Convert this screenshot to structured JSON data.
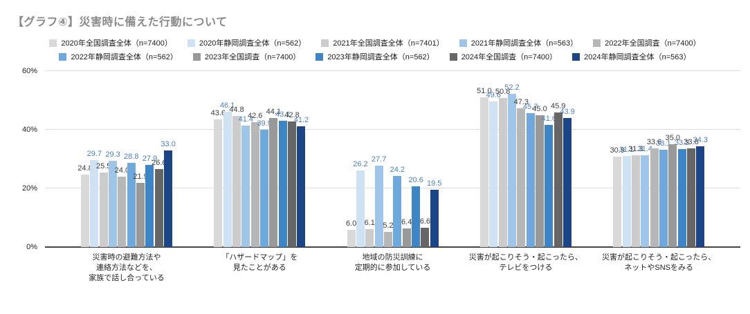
{
  "title": "【グラフ④】災害時に備えた行動について",
  "chart_data": {
    "type": "bar",
    "title": "【グラフ④】災害時に備えた行動について",
    "xlabel": "",
    "ylabel": "",
    "ylim": [
      0,
      60
    ],
    "grid": true,
    "legend_position": "top",
    "y_ticks": [
      {
        "value": 0,
        "label": "0%"
      },
      {
        "value": 20,
        "label": "20%"
      },
      {
        "value": 40,
        "label": "40%"
      },
      {
        "value": 60,
        "label": "60%"
      }
    ],
    "categories": [
      "災害時の避難方法や\n連絡方法などを、\n家族で話し合っている",
      "「ハザードマップ」を\n見たことがある",
      "地域の防災訓練に\n定期的に参加している",
      "災害が起こりそう・起こったら、\nテレビをつける",
      "災害が起こりそう・起こったら、\nネットやSNSをみる"
    ],
    "series": [
      {
        "name": "2020年全国調査全体（n=7400）",
        "color": "#d9d9d9",
        "label_color": "#3c3c3c",
        "values": [
          24.8,
          43.6,
          6.0,
          51.0,
          30.9
        ]
      },
      {
        "name": "2020年静岡調査全体（n=562）",
        "color": "#cfe2f3",
        "label_color": "#4a80bf",
        "values": [
          29.7,
          46.1,
          26.2,
          49.6,
          31.1
        ]
      },
      {
        "name": "2021年全国調査全体（n=7401）",
        "color": "#cccccc",
        "label_color": "#3c3c3c",
        "values": [
          25.5,
          44.8,
          6.1,
          50.8,
          31.3
        ]
      },
      {
        "name": "2021年静岡調査全体（n=563）",
        "color": "#9fc5e8",
        "label_color": "#4a80bf",
        "values": [
          29.3,
          41.4,
          27.7,
          52.2,
          31.4
        ]
      },
      {
        "name": "2022年全国調査（n=7400）",
        "color": "#b7b7b7",
        "label_color": "#3c3c3c",
        "values": [
          24.0,
          42.6,
          5.2,
          47.3,
          33.6
        ]
      },
      {
        "name": "2022年静岡調査全体（n=562）",
        "color": "#6fa8dc",
        "label_color": "#4a80bf",
        "values": [
          28.8,
          39.9,
          24.2,
          45.7,
          33.1
        ]
      },
      {
        "name": "2023年全国調査（n=7400）",
        "color": "#999999",
        "label_color": "#3c3c3c",
        "values": [
          21.9,
          44.1,
          6.4,
          45.0,
          35.0
        ]
      },
      {
        "name": "2023年静岡調査全体（n=562）",
        "color": "#3d85c6",
        "label_color": "#4a80bf",
        "values": [
          27.9,
          43.1,
          20.6,
          41.6,
          33.3
        ]
      },
      {
        "name": "2024年全国調査（n=7400）",
        "color": "#666666",
        "label_color": "#3c3c3c",
        "values": [
          26.6,
          42.8,
          6.6,
          45.9,
          33.6
        ]
      },
      {
        "name": "2024年静岡調査全体（n=563）",
        "color": "#1c4587",
        "label_color": "#4a80bf",
        "values": [
          33.0,
          41.2,
          19.5,
          43.9,
          34.3
        ]
      }
    ],
    "legend_rows": [
      [
        0,
        1,
        2,
        3,
        4
      ],
      [
        5,
        6,
        7,
        8,
        9
      ]
    ]
  }
}
